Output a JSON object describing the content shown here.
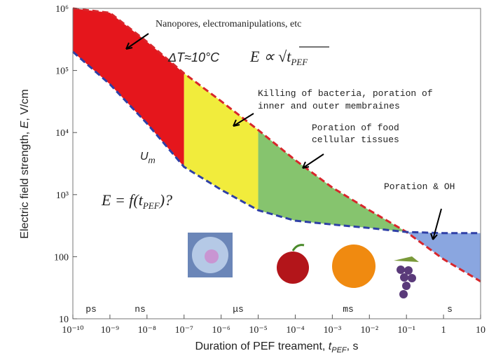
{
  "chart_data": {
    "type": "area",
    "xlabel": [
      "Duration of PEF treament, ",
      "t",
      "PEF",
      ", s"
    ],
    "ylabel": [
      "Electric field strength, ",
      "E",
      ", V/cm"
    ],
    "x": [
      1e-10,
      1e-09,
      1e-08,
      1e-07,
      1e-06,
      1e-05,
      0.0001,
      0.001,
      0.01,
      0.1,
      1,
      10
    ],
    "boundaries": [
      {
        "color": "#d8262b",
        "values": [
          1000000,
          850000,
          290000,
          90000,
          32000,
          11000,
          3600,
          1300,
          560,
          250,
          91,
          40
        ]
      },
      {
        "color": "#2e3fa6",
        "values": [
          200000,
          60000,
          14000,
          2800,
          1200,
          560,
          380,
          330,
          290,
          250,
          240,
          240
        ]
      }
    ],
    "regions": [
      {
        "xrange": [
          1e-10,
          1e-07
        ],
        "color": "#e5161c"
      },
      {
        "xrange": [
          1e-07,
          1e-05
        ],
        "color": "#f1ec3c"
      },
      {
        "xrange": [
          1e-05,
          0.1
        ],
        "color": "#86c46e"
      },
      {
        "xrange": [
          0.1,
          10
        ],
        "color": "#8aa6e0"
      }
    ],
    "xlim": [
      1e-10,
      10
    ],
    "ylim": [
      10,
      1000000
    ],
    "log_x": true,
    "log_y": true,
    "xticks": [
      {
        "value": 1e-10,
        "label": "10⁻¹⁰"
      },
      {
        "value": 1e-09,
        "label": "10⁻⁹"
      },
      {
        "value": 1e-08,
        "label": "10⁻⁸"
      },
      {
        "value": 1e-07,
        "label": "10⁻⁷"
      },
      {
        "value": 1e-06,
        "label": "10⁻⁶"
      },
      {
        "value": 1e-05,
        "label": "10⁻⁵"
      },
      {
        "value": 0.0001,
        "label": "10⁻⁴"
      },
      {
        "value": 0.001,
        "label": "10⁻³"
      },
      {
        "value": 0.01,
        "label": "10⁻²"
      },
      {
        "value": 0.1,
        "label": "10⁻¹"
      },
      1,
      10
    ],
    "yticks": [
      10,
      100,
      {
        "value": 1000,
        "label": "10³"
      },
      {
        "value": 10000,
        "label": "10⁴"
      },
      {
        "value": 100000,
        "label": "10⁵"
      },
      {
        "value": 1000000,
        "label": "10⁶"
      }
    ],
    "time_units": [
      "ps",
      "ns",
      "μs",
      "ms",
      "s"
    ],
    "annotations": {
      "nanopores": "Nanopores, electromanipulations, etc",
      "delta_t": "ΔT≈10°C",
      "scaling": [
        "E ∝ √",
        "t",
        "PEF"
      ],
      "bacteria": [
        "Killing of bacteria, poration of",
        "inner and outer membraines"
      ],
      "food": [
        "Poration of food",
        "cellular tissues"
      ],
      "oh": "Poration & OH",
      "um": [
        "U",
        "m"
      ],
      "question": [
        "E = f(",
        "t",
        "PEF",
        ")?"
      ]
    }
  }
}
